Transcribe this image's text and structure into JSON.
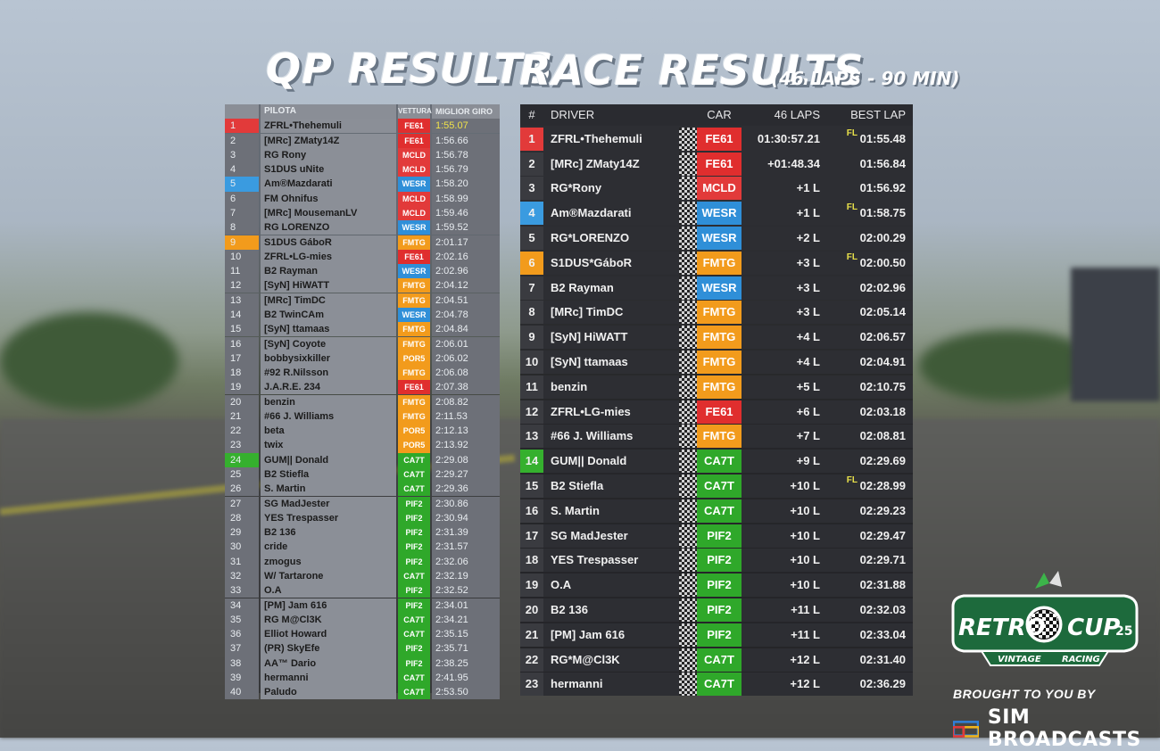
{
  "qp": {
    "title": "QP RESULTS",
    "headers": {
      "pos": "",
      "driver": "PILOTA",
      "car": "VETTURA",
      "lap": "MIGLIOR GIRO"
    },
    "rows": [
      {
        "pos": "1",
        "driver": "ZFRL•Thehemuli",
        "car": "FE61",
        "lap": "1:55.07",
        "pos_color": "#e23a3a"
      },
      {
        "pos": "2",
        "driver": "[MRc] ZMaty14Z",
        "car": "FE61",
        "lap": "1:56.66"
      },
      {
        "pos": "3",
        "driver": "RG Rony",
        "car": "MCLD",
        "lap": "1:56.78"
      },
      {
        "pos": "4",
        "driver": "S1DUS uNite",
        "car": "MCLD",
        "lap": "1:56.79"
      },
      {
        "pos": "5",
        "driver": "Am®Mazdarati",
        "car": "WESR",
        "lap": "1:58.20",
        "pos_color": "#3a9be0"
      },
      {
        "pos": "6",
        "driver": "FM Ohnifus",
        "car": "MCLD",
        "lap": "1:58.99"
      },
      {
        "pos": "7",
        "driver": "[MRc] MousemanLV",
        "car": "MCLD",
        "lap": "1:59.46"
      },
      {
        "pos": "8",
        "driver": "RG LORENZO",
        "car": "WESR",
        "lap": "1:59.52"
      },
      {
        "pos": "9",
        "driver": "S1DUS GáboR",
        "car": "FMTG",
        "lap": "2:01.17",
        "pos_color": "#f29b1c"
      },
      {
        "pos": "10",
        "driver": "ZFRL•LG-mies",
        "car": "FE61",
        "lap": "2:02.16"
      },
      {
        "pos": "11",
        "driver": "B2 Rayman",
        "car": "WESR",
        "lap": "2:02.96"
      },
      {
        "pos": "12",
        "driver": "[SyN] HiWATT",
        "car": "FMTG",
        "lap": "2:04.12"
      },
      {
        "pos": "13",
        "driver": "[MRc] TimDC",
        "car": "FMTG",
        "lap": "2:04.51"
      },
      {
        "pos": "14",
        "driver": "B2 TwinCAm",
        "car": "WESR",
        "lap": "2:04.78"
      },
      {
        "pos": "15",
        "driver": "[SyN] ttamaas",
        "car": "FMTG",
        "lap": "2:04.84"
      },
      {
        "pos": "16",
        "driver": "[SyN] Coyote",
        "car": "FMTG",
        "lap": "2:06.01"
      },
      {
        "pos": "17",
        "driver": "bobbysixkiller",
        "car": "POR5",
        "lap": "2:06.02"
      },
      {
        "pos": "18",
        "driver": "#92 R.Nilsson",
        "car": "FMTG",
        "lap": "2:06.08"
      },
      {
        "pos": "19",
        "driver": "J.A.R.E. 234",
        "car": "FE61",
        "lap": "2:07.38"
      },
      {
        "pos": "20",
        "driver": "benzin",
        "car": "FMTG",
        "lap": "2:08.82"
      },
      {
        "pos": "21",
        "driver": "#66 J. Williams",
        "car": "FMTG",
        "lap": "2:11.53"
      },
      {
        "pos": "22",
        "driver": "beta",
        "car": "POR5",
        "lap": "2:12.13"
      },
      {
        "pos": "23",
        "driver": "twix",
        "car": "POR5",
        "lap": "2:13.92"
      },
      {
        "pos": "24",
        "driver": "GUM|| Donald",
        "car": "CA7T",
        "lap": "2:29.08",
        "pos_color": "#35b02e"
      },
      {
        "pos": "25",
        "driver": "B2 Stiefla",
        "car": "CA7T",
        "lap": "2:29.27"
      },
      {
        "pos": "26",
        "driver": "S. Martin",
        "car": "CA7T",
        "lap": "2:29.36"
      },
      {
        "pos": "27",
        "driver": "SG MadJester",
        "car": "PIF2",
        "lap": "2:30.86"
      },
      {
        "pos": "28",
        "driver": "YES Trespasser",
        "car": "PIF2",
        "lap": "2:30.94"
      },
      {
        "pos": "29",
        "driver": "B2 136",
        "car": "PIF2",
        "lap": "2:31.39"
      },
      {
        "pos": "30",
        "driver": "cride",
        "car": "PIF2",
        "lap": "2:31.57"
      },
      {
        "pos": "31",
        "driver": "zmogus",
        "car": "PIF2",
        "lap": "2:32.06"
      },
      {
        "pos": "32",
        "driver": "W/ Tartarone",
        "car": "CA7T",
        "lap": "2:32.19"
      },
      {
        "pos": "33",
        "driver": "O.A",
        "car": "PIF2",
        "lap": "2:32.52"
      },
      {
        "pos": "34",
        "driver": "[PM] Jam 616",
        "car": "PIF2",
        "lap": "2:34.01"
      },
      {
        "pos": "35",
        "driver": "RG M@Cl3K",
        "car": "CA7T",
        "lap": "2:34.21"
      },
      {
        "pos": "36",
        "driver": "Elliot Howard",
        "car": "CA7T",
        "lap": "2:35.15"
      },
      {
        "pos": "37",
        "driver": "(PR) SkyEfe",
        "car": "PIF2",
        "lap": "2:35.71"
      },
      {
        "pos": "38",
        "driver": "AA™ Dario",
        "car": "PIF2",
        "lap": "2:38.25"
      },
      {
        "pos": "39",
        "driver": "hermanni",
        "car": "CA7T",
        "lap": "2:41.95"
      },
      {
        "pos": "40",
        "driver": "Paludo",
        "car": "CA7T",
        "lap": "2:53.50"
      }
    ]
  },
  "race": {
    "title": "RACE RESULTS",
    "subtitle": "(46 LAPS - 90 MIN)",
    "headers": {
      "pos": "#",
      "driver": "DRIVER",
      "car": "CAR",
      "gap": "46 LAPS",
      "best": "BEST LAP"
    },
    "rows": [
      {
        "pos": "1",
        "driver": "ZFRL•Thehemuli",
        "car": "FE61",
        "gap": "01:30:57.21",
        "best": "01:55.48",
        "fl": "FL",
        "pos_color": "#e23a3a"
      },
      {
        "pos": "2",
        "driver": "[MRc] ZMaty14Z",
        "car": "FE61",
        "gap": "+01:48.34",
        "best": "01:56.84",
        "fl": ""
      },
      {
        "pos": "3",
        "driver": "RG*Rony",
        "car": "MCLD",
        "gap": "+1 L",
        "best": "01:56.92",
        "fl": ""
      },
      {
        "pos": "4",
        "driver": "Am®Mazdarati",
        "car": "WESR",
        "gap": "+1 L",
        "best": "01:58.75",
        "fl": "FL",
        "pos_color": "#3a9be0"
      },
      {
        "pos": "5",
        "driver": "RG*LORENZO",
        "car": "WESR",
        "gap": "+2 L",
        "best": "02:00.29",
        "fl": ""
      },
      {
        "pos": "6",
        "driver": "S1DUS*GáboR",
        "car": "FMTG",
        "gap": "+3 L",
        "best": "02:00.50",
        "fl": "FL",
        "pos_color": "#f29b1c"
      },
      {
        "pos": "7",
        "driver": "B2 Rayman",
        "car": "WESR",
        "gap": "+3 L",
        "best": "02:02.96",
        "fl": ""
      },
      {
        "pos": "8",
        "driver": "[MRc] TimDC",
        "car": "FMTG",
        "gap": "+3 L",
        "best": "02:05.14",
        "fl": ""
      },
      {
        "pos": "9",
        "driver": "[SyN] HiWATT",
        "car": "FMTG",
        "gap": "+4 L",
        "best": "02:06.57",
        "fl": ""
      },
      {
        "pos": "10",
        "driver": "[SyN] ttamaas",
        "car": "FMTG",
        "gap": "+4 L",
        "best": "02:04.91",
        "fl": ""
      },
      {
        "pos": "11",
        "driver": "benzin",
        "car": "FMTG",
        "gap": "+5 L",
        "best": "02:10.75",
        "fl": ""
      },
      {
        "pos": "12",
        "driver": "ZFRL•LG-mies",
        "car": "FE61",
        "gap": "+6 L",
        "best": "02:03.18",
        "fl": ""
      },
      {
        "pos": "13",
        "driver": "#66 J. Williams",
        "car": "FMTG",
        "gap": "+7 L",
        "best": "02:08.81",
        "fl": ""
      },
      {
        "pos": "14",
        "driver": "GUM|| Donald",
        "car": "CA7T",
        "gap": "+9 L",
        "best": "02:29.69",
        "fl": "",
        "pos_color": "#35b02e"
      },
      {
        "pos": "15",
        "driver": "B2 Stiefla",
        "car": "CA7T",
        "gap": "+10 L",
        "best": "02:28.99",
        "fl": "FL"
      },
      {
        "pos": "16",
        "driver": "S. Martin",
        "car": "CA7T",
        "gap": "+10 L",
        "best": "02:29.23",
        "fl": ""
      },
      {
        "pos": "17",
        "driver": "SG MadJester",
        "car": "PIF2",
        "gap": "+10 L",
        "best": "02:29.47",
        "fl": ""
      },
      {
        "pos": "18",
        "driver": "YES Trespasser",
        "car": "PIF2",
        "gap": "+10 L",
        "best": "02:29.71",
        "fl": ""
      },
      {
        "pos": "19",
        "driver": "O.A",
        "car": "PIF2",
        "gap": "+10 L",
        "best": "02:31.88",
        "fl": ""
      },
      {
        "pos": "20",
        "driver": "B2 136",
        "car": "PIF2",
        "gap": "+11 L",
        "best": "02:32.03",
        "fl": ""
      },
      {
        "pos": "21",
        "driver": "[PM] Jam 616",
        "car": "PIF2",
        "gap": "+11 L",
        "best": "02:33.04",
        "fl": ""
      },
      {
        "pos": "22",
        "driver": "RG*M@Cl3K",
        "car": "CA7T",
        "gap": "+12 L",
        "best": "02:31.40",
        "fl": ""
      },
      {
        "pos": "23",
        "driver": "hermanni",
        "car": "CA7T",
        "gap": "+12 L",
        "best": "02:36.29",
        "fl": ""
      }
    ]
  },
  "car_colors": {
    "FE61": "#e02e2e",
    "MCLD": "#e23a3a",
    "WESR": "#2f8fd8",
    "FMTG": "#f29b1c",
    "POR5": "#f29b1c",
    "CA7T": "#2fa82a",
    "PIF2": "#2fa82a"
  },
  "logo": {
    "retro": "RETRO",
    "cup": "CUP",
    "year": "25",
    "vintage": "VINTAGE",
    "racing": "RACING"
  },
  "credit": {
    "brought": "BROUGHT TO YOU BY",
    "sim": "SIM BROADCASTS"
  }
}
